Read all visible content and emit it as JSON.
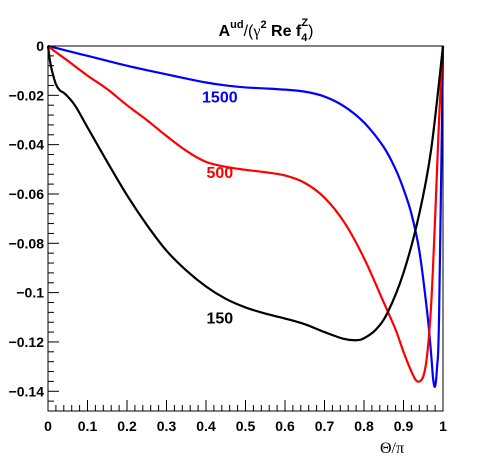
{
  "chart_data": {
    "type": "line",
    "title": {
      "prefix": "A",
      "prefix_sup": "ud",
      "open": "/(",
      "gamma": "γ",
      "gamma_sup": "2",
      "mid": " Re f",
      "f_sub": "4",
      "f_sup": "Z",
      "close": ")"
    },
    "xlabel": "Θ/π",
    "ylabel": "",
    "xlim": [
      0,
      1
    ],
    "ylim": [
      -0.148,
      0
    ],
    "x_ticks": [
      "0",
      "0.1",
      "0.2",
      "0.3",
      "0.4",
      "0.5",
      "0.6",
      "0.7",
      "0.8",
      "0.9",
      "1"
    ],
    "y_ticks": [
      "0",
      "−0.02",
      "−0.04",
      "−0.06",
      "−0.08",
      "−0.1",
      "−0.12",
      "−0.14"
    ],
    "grid": false,
    "series": [
      {
        "name": "1500",
        "color": "#0000ff",
        "x": [
          0,
          0.02,
          0.05,
          0.1,
          0.15,
          0.2,
          0.25,
          0.3,
          0.35,
          0.4,
          0.45,
          0.5,
          0.55,
          0.6,
          0.65,
          0.7,
          0.75,
          0.8,
          0.85,
          0.88,
          0.9,
          0.92,
          0.94,
          0.96,
          0.97,
          0.975,
          0.98,
          0.985,
          0.99,
          1.0
        ],
        "y": [
          0,
          -0.0008,
          -0.002,
          -0.004,
          -0.006,
          -0.008,
          -0.0098,
          -0.0115,
          -0.0132,
          -0.0148,
          -0.016,
          -0.0168,
          -0.0172,
          -0.0177,
          -0.0185,
          -0.0205,
          -0.0245,
          -0.031,
          -0.041,
          -0.05,
          -0.058,
          -0.068,
          -0.083,
          -0.108,
          -0.125,
          -0.135,
          -0.138,
          -0.13,
          -0.11,
          0
        ]
      },
      {
        "name": "500",
        "color": "#ff0000",
        "x": [
          0,
          0.02,
          0.05,
          0.1,
          0.15,
          0.2,
          0.25,
          0.3,
          0.35,
          0.4,
          0.45,
          0.5,
          0.55,
          0.6,
          0.65,
          0.7,
          0.75,
          0.8,
          0.85,
          0.88,
          0.9,
          0.92,
          0.935,
          0.95,
          0.96,
          0.97,
          0.98,
          0.99,
          1.0
        ],
        "y": [
          0,
          -0.0025,
          -0.006,
          -0.012,
          -0.0175,
          -0.024,
          -0.03,
          -0.0365,
          -0.0425,
          -0.047,
          -0.049,
          -0.0502,
          -0.0512,
          -0.0525,
          -0.0555,
          -0.0615,
          -0.0715,
          -0.086,
          -0.104,
          -0.115,
          -0.124,
          -0.132,
          -0.136,
          -0.134,
          -0.125,
          -0.105,
          -0.07,
          -0.03,
          0
        ]
      },
      {
        "name": "150",
        "color": "#000000",
        "x": [
          0,
          0.005,
          0.01,
          0.02,
          0.03,
          0.04,
          0.05,
          0.07,
          0.1,
          0.15,
          0.2,
          0.25,
          0.3,
          0.35,
          0.4,
          0.45,
          0.5,
          0.55,
          0.6,
          0.65,
          0.7,
          0.75,
          0.78,
          0.8,
          0.83,
          0.86,
          0.9,
          0.94,
          0.97,
          1.0
        ],
        "y": [
          0,
          -0.006,
          -0.01,
          -0.0155,
          -0.018,
          -0.019,
          -0.0205,
          -0.0245,
          -0.033,
          -0.047,
          -0.0605,
          -0.0725,
          -0.083,
          -0.091,
          -0.0975,
          -0.1025,
          -0.106,
          -0.1085,
          -0.1105,
          -0.1128,
          -0.116,
          -0.1188,
          -0.1193,
          -0.1185,
          -0.115,
          -0.108,
          -0.092,
          -0.068,
          -0.042,
          0
        ]
      }
    ],
    "labels": [
      {
        "text": "1500",
        "color": "#0000ff",
        "x": 0.435,
        "y": -0.023
      },
      {
        "text": "500",
        "color": "#ff0000",
        "x": 0.435,
        "y": -0.0535
      },
      {
        "text": "150",
        "color": "#000000",
        "x": 0.435,
        "y": -0.1125
      }
    ]
  }
}
